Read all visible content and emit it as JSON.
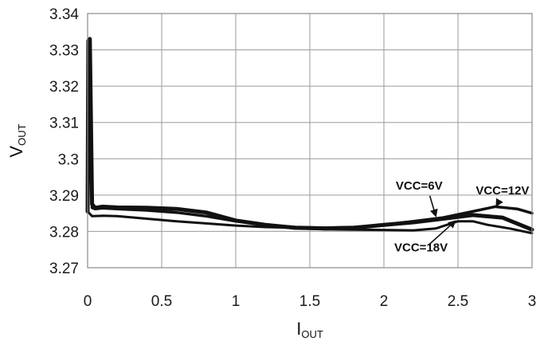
{
  "chart_data": {
    "type": "line",
    "title": "",
    "xlabel": {
      "main": "I",
      "sub": "OUT"
    },
    "ylabel": {
      "main": "V",
      "sub": "OUT"
    },
    "xlim": [
      0,
      3
    ],
    "ylim": [
      3.27,
      3.34
    ],
    "x_ticks": [
      0,
      0.5,
      1,
      1.5,
      2,
      2.5,
      3
    ],
    "x_tick_labels": [
      "0",
      "0.5",
      "1",
      "1.5",
      "2",
      "2.5",
      "3"
    ],
    "y_ticks": [
      3.27,
      3.28,
      3.29,
      3.3,
      3.31,
      3.32,
      3.33,
      3.34
    ],
    "y_tick_labels": [
      "3.27",
      "3.28",
      "3.29",
      "3.3",
      "3.31",
      "3.32",
      "3.33",
      "3.34"
    ],
    "grid": true,
    "legend": "none",
    "line_color": "#111111",
    "series": [
      {
        "name": "VCC=6V",
        "stroke": 5,
        "points": [
          [
            0.0,
            3.2855
          ],
          [
            0.005,
            3.3325
          ],
          [
            0.015,
            3.333
          ],
          [
            0.03,
            3.2875
          ],
          [
            0.05,
            3.2865
          ],
          [
            0.1,
            3.2868
          ],
          [
            0.2,
            3.2866
          ],
          [
            0.4,
            3.2865
          ],
          [
            0.6,
            3.2862
          ],
          [
            0.8,
            3.2852
          ],
          [
            1.0,
            3.283
          ],
          [
            1.2,
            3.2818
          ],
          [
            1.4,
            3.281
          ],
          [
            1.6,
            3.2808
          ],
          [
            1.8,
            3.281
          ],
          [
            2.0,
            3.2818
          ],
          [
            2.2,
            3.2825
          ],
          [
            2.4,
            3.2835
          ],
          [
            2.6,
            3.2845
          ],
          [
            2.8,
            3.2838
          ],
          [
            3.0,
            3.2805
          ]
        ]
      },
      {
        "name": "VCC=12V",
        "stroke": 3.5,
        "points": [
          [
            0.0,
            3.2855
          ],
          [
            0.005,
            3.327
          ],
          [
            0.015,
            3.328
          ],
          [
            0.03,
            3.2865
          ],
          [
            0.05,
            3.2862
          ],
          [
            0.1,
            3.2864
          ],
          [
            0.2,
            3.2862
          ],
          [
            0.4,
            3.2858
          ],
          [
            0.6,
            3.2852
          ],
          [
            0.8,
            3.2842
          ],
          [
            1.0,
            3.2828
          ],
          [
            1.2,
            3.2818
          ],
          [
            1.4,
            3.2812
          ],
          [
            1.6,
            3.281
          ],
          [
            1.8,
            3.2812
          ],
          [
            2.0,
            3.2818
          ],
          [
            2.2,
            3.2828
          ],
          [
            2.4,
            3.2838
          ],
          [
            2.6,
            3.2855
          ],
          [
            2.75,
            3.2868
          ],
          [
            2.9,
            3.2862
          ],
          [
            3.0,
            3.285
          ]
        ]
      },
      {
        "name": "VCC=18V",
        "stroke": 3,
        "points": [
          [
            0.0,
            3.2855
          ],
          [
            0.03,
            3.2842
          ],
          [
            0.1,
            3.2843
          ],
          [
            0.2,
            3.2842
          ],
          [
            0.4,
            3.2835
          ],
          [
            0.6,
            3.2828
          ],
          [
            0.8,
            3.2822
          ],
          [
            1.0,
            3.2816
          ],
          [
            1.2,
            3.2812
          ],
          [
            1.4,
            3.281
          ],
          [
            1.6,
            3.2806
          ],
          [
            1.8,
            3.2805
          ],
          [
            2.0,
            3.2804
          ],
          [
            2.2,
            3.2803
          ],
          [
            2.35,
            3.2808
          ],
          [
            2.5,
            3.2828
          ],
          [
            2.6,
            3.2828
          ],
          [
            2.7,
            3.2818
          ],
          [
            2.85,
            3.2808
          ],
          [
            3.0,
            3.2795
          ]
        ]
      }
    ],
    "annotations": [
      {
        "text": "VCC=6V",
        "for": "VCC=6V",
        "text_at": [
          2.08,
          3.2915
        ],
        "arrow_from": [
          2.31,
          3.2898
        ],
        "arrow_to": [
          2.35,
          3.2843
        ]
      },
      {
        "text": "VCC=12V",
        "for": "VCC=12V",
        "text_at": [
          2.62,
          3.2902
        ],
        "arrow_from": [
          2.78,
          3.2885
        ],
        "arrow_to": [
          2.76,
          3.2871
        ]
      },
      {
        "text": "VCC=18V",
        "for": "VCC=18V",
        "text_at": [
          2.07,
          3.2745
        ],
        "arrow_from": [
          2.3,
          3.2762
        ],
        "arrow_to": [
          2.48,
          3.2828
        ]
      }
    ]
  }
}
